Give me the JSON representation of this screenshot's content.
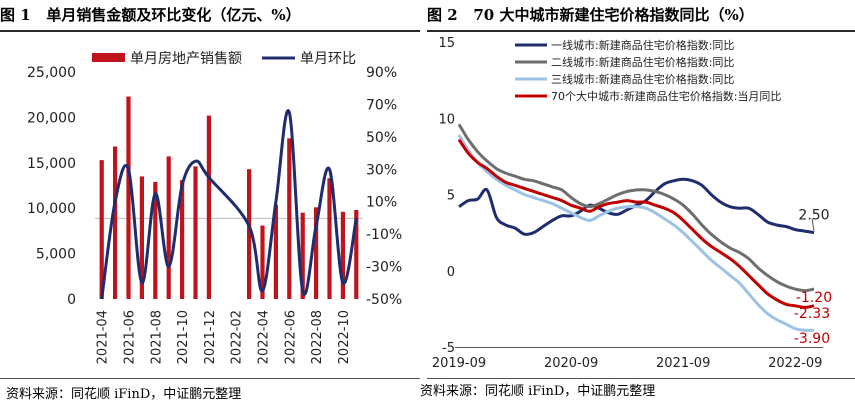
{
  "left_figure": {
    "label": "图 1",
    "title": "单月销售金额及环比变化（亿元、%）",
    "source": "资料来源：同花顺 iFinD，中证鹏元整理"
  },
  "right_figure": {
    "label": "图 2",
    "title": "70 大中城市新建住宅价格指数同比（%）",
    "source": "资料来源：同花顺 iFinD，中证鹏元整理"
  },
  "colors": {
    "bar": "#c0141c",
    "navy": "#1f2d6e",
    "gray": "#6e6e6e",
    "lightblue": "#9cc3e6",
    "red": "#c00000"
  },
  "chart_data": [
    {
      "type": "bar",
      "title": "单月销售金额及环比变化（亿元、%）",
      "categories": [
        "2021-04",
        "2021-05",
        "2021-06",
        "2021-07",
        "2021-08",
        "2021-09",
        "2021-10",
        "2021-11",
        "2021-12",
        "2022-01",
        "2022-02",
        "2022-03",
        "2022-04",
        "2022-05",
        "2022-06",
        "2022-07",
        "2022-08",
        "2022-09",
        "2022-10",
        "2022-11"
      ],
      "xtick_labels": [
        "2021-04",
        "2021-06",
        "2021-08",
        "2021-10",
        "2021-12",
        "2022-02",
        "2022-04",
        "2022-06",
        "2022-08",
        "2022-10"
      ],
      "legend_position": "top",
      "y_left": {
        "label": "",
        "range": [
          0,
          25000
        ],
        "ticks": [
          "0",
          "5,000",
          "10,000",
          "15,000",
          "20,000",
          "25,000"
        ]
      },
      "y_right": {
        "label": "",
        "range": [
          -50,
          90
        ],
        "ticks": [
          "-50%",
          "-30%",
          "-10%",
          "10%",
          "30%",
          "50%",
          "70%",
          "90%"
        ]
      },
      "series": [
        {
          "name": "单月房地产销售额",
          "kind": "bar",
          "axis": "left",
          "values": [
            15300,
            16800,
            22300,
            13500,
            12900,
            15700,
            13100,
            14600,
            20200,
            null,
            null,
            14300,
            8100,
            10400,
            17700,
            9500,
            10100,
            13300,
            9600,
            9800
          ]
        },
        {
          "name": "单月环比",
          "kind": "line",
          "axis": "right",
          "values": [
            -50,
            10,
            30,
            -40,
            15,
            -30,
            20,
            35,
            25,
            null,
            null,
            -5,
            -45,
            10,
            65,
            -45,
            -5,
            30,
            -40,
            0
          ]
        }
      ]
    },
    {
      "type": "line",
      "title": "70 大中城市新建住宅价格指数同比（%）",
      "legend_position": "top-right",
      "x_range": [
        "2019-09",
        "2022-10"
      ],
      "xtick_labels": [
        "2019-09",
        "2020-09",
        "2021-09",
        "2022-09"
      ],
      "y_range": [
        -5,
        15
      ],
      "ytick_labels": [
        "-5",
        "0",
        "5",
        "10",
        "15"
      ],
      "series": [
        {
          "name": "一线城市:新建商品住宅价格指数:同比",
          "end_label": "2.50",
          "values": [
            4.2,
            4.6,
            4.7,
            5.3,
            3.5,
            3.0,
            2.8,
            2.4,
            2.5,
            2.9,
            3.3,
            3.6,
            3.6,
            3.9,
            4.3,
            4.1,
            3.8,
            3.7,
            4.0,
            4.3,
            4.6,
            5.2,
            5.7,
            5.9,
            6.0,
            5.9,
            5.6,
            5.0,
            4.5,
            4.2,
            4.1,
            4.1,
            3.7,
            3.2,
            3.0,
            2.9,
            2.7,
            2.6,
            2.5
          ]
        },
        {
          "name": "二线城市:新建商品住宅价格指数:同比",
          "end_label": "-1.20",
          "values": [
            9.6,
            8.6,
            7.8,
            7.2,
            6.7,
            6.4,
            6.2,
            6.0,
            5.9,
            5.7,
            5.5,
            5.3,
            4.8,
            4.4,
            4.2,
            4.4,
            4.7,
            5.0,
            5.2,
            5.3,
            5.3,
            5.2,
            5.0,
            4.7,
            4.3,
            3.7,
            3.0,
            2.4,
            1.9,
            1.5,
            1.2,
            0.8,
            0.2,
            -0.3,
            -0.7,
            -1.0,
            -1.2,
            -1.3,
            -1.2
          ]
        },
        {
          "name": "三线城市:新建商品住宅价格指数:同比",
          "end_label": "-3.90",
          "values": [
            8.9,
            7.9,
            7.1,
            6.5,
            6.0,
            5.6,
            5.3,
            5.0,
            4.8,
            4.6,
            4.4,
            4.1,
            3.8,
            3.5,
            3.3,
            3.6,
            3.9,
            4.1,
            4.2,
            4.2,
            4.1,
            3.8,
            3.4,
            3.0,
            2.5,
            1.9,
            1.3,
            0.7,
            0.2,
            -0.3,
            -0.8,
            -1.5,
            -2.2,
            -2.8,
            -3.2,
            -3.5,
            -3.8,
            -3.9,
            -3.9
          ]
        },
        {
          "name": "70个大中城市:新建商品住宅价格指数:当月同比",
          "end_label": "-2.33",
          "values": [
            8.6,
            7.7,
            7.1,
            6.7,
            6.2,
            5.8,
            5.6,
            5.4,
            5.2,
            5.0,
            4.8,
            4.6,
            4.3,
            4.1,
            3.9,
            4.2,
            4.4,
            4.5,
            4.6,
            4.5,
            4.5,
            4.3,
            4.1,
            3.8,
            3.3,
            2.7,
            2.1,
            1.6,
            1.2,
            0.8,
            0.3,
            -0.3,
            -0.9,
            -1.5,
            -1.9,
            -2.2,
            -2.3,
            -2.4,
            -2.3
          ]
        }
      ]
    }
  ]
}
